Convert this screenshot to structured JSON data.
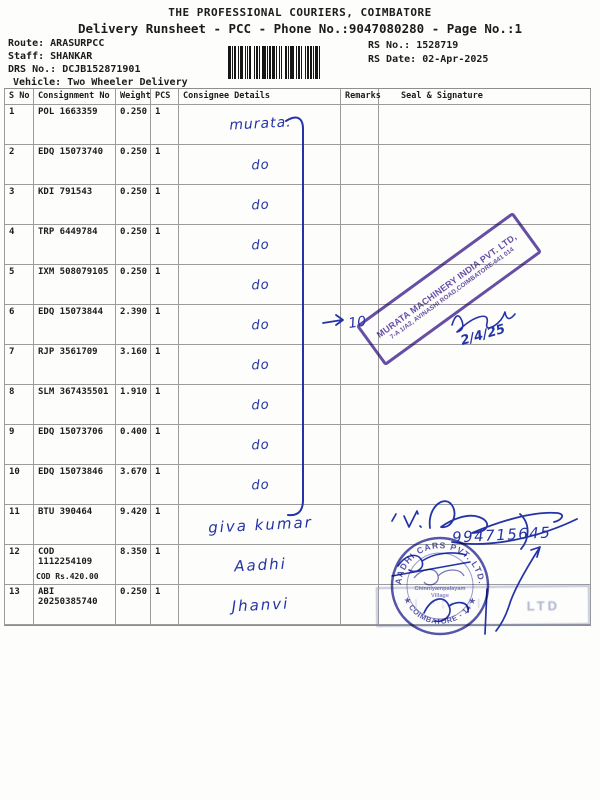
{
  "colors": {
    "ink": "#2433a6",
    "purple": "#5a3f9e",
    "roundcol": "#3f3fa0",
    "doctext": "#1c1c1c"
  },
  "header": {
    "title": "THE PROFESSIONAL COURIERS, COIMBATORE",
    "subtitle": "Delivery Runsheet - PCC - Phone No.:9047080280 - Page No.:1"
  },
  "info": {
    "route_label": "Route:",
    "route_value": "ARASURPCC",
    "staff_label": "Staff:",
    "staff_value": "SHANKAR",
    "drs_label": "DRS No.:",
    "drs_value": "DCJB152871901",
    "vehicle_label": "Vehicle:",
    "vehicle_value": "Two Wheeler Delivery",
    "rs_no_label": "RS No.:",
    "rs_no_value": "1528719",
    "rs_date_label": "RS Date:",
    "rs_date_value": "02-Apr-2025"
  },
  "table": {
    "headers": {
      "sno": "S No",
      "consignment": "Consignment No",
      "weight": "Weight",
      "pcs": "PCS",
      "consignee": "Consignee Details",
      "remarks": "Remarks",
      "seal": "Seal & Signature"
    },
    "rows": [
      {
        "sno": "1",
        "consignment": "POL 1663359",
        "weight": "0.250",
        "pcs": "1",
        "hw": "murata."
      },
      {
        "sno": "2",
        "consignment": "EDQ 15073740",
        "weight": "0.250",
        "pcs": "1",
        "hw": "do"
      },
      {
        "sno": "3",
        "consignment": "KDI 791543",
        "weight": "0.250",
        "pcs": "1",
        "hw": "do"
      },
      {
        "sno": "4",
        "consignment": "TRP 6449784",
        "weight": "0.250",
        "pcs": "1",
        "hw": "do"
      },
      {
        "sno": "5",
        "consignment": "IXM 508079105",
        "weight": "0.250",
        "pcs": "1",
        "hw": "do"
      },
      {
        "sno": "6",
        "consignment": "EDQ 15073844",
        "weight": "2.390",
        "pcs": "1",
        "hw": "do",
        "remark_hw": "10"
      },
      {
        "sno": "7",
        "consignment": "RJP 3561709",
        "weight": "3.160",
        "pcs": "1",
        "hw": "do"
      },
      {
        "sno": "8",
        "consignment": "SLM 367435501",
        "weight": "1.910",
        "pcs": "1",
        "hw": "do"
      },
      {
        "sno": "9",
        "consignment": "EDQ 15073706",
        "weight": "0.400",
        "pcs": "1",
        "hw": "do"
      },
      {
        "sno": "10",
        "consignment": "EDQ 15073846",
        "weight": "3.670",
        "pcs": "1",
        "hw": "do"
      },
      {
        "sno": "11",
        "consignment": "BTU 390464",
        "weight": "9.420",
        "pcs": "1",
        "hw": "giva kumar"
      },
      {
        "sno": "12",
        "consignment": "COD 1112254109",
        "weight": "8.350",
        "pcs": "1",
        "hw": "Aadhi",
        "subnote": "COD Rs.420.00"
      },
      {
        "sno": "13",
        "consignment": "ABI 20250385740",
        "weight": "0.250",
        "pcs": "1",
        "hw": "Jhanvi"
      }
    ]
  },
  "handwriting": {
    "remark_arrow_value": "10",
    "stamp_date": "2/4/25",
    "phone_number": "994715645"
  },
  "stamps": {
    "murata": {
      "line1": "MURATA MACHINERY INDIA PVT. LTD,",
      "line2": "7-A 1/A2, AVINASHI ROAD,COIMBATORE-641 014"
    },
    "aadhi_round": {
      "top_arc": "AADHI CARS PVT. LTD.",
      "bottom_arc": "★ COIMBATORE - 14 ★",
      "inner_line1": "Chinniyampalayam",
      "inner_line2": "Village"
    },
    "faded_rect": {
      "visible_text": "LTD"
    }
  }
}
